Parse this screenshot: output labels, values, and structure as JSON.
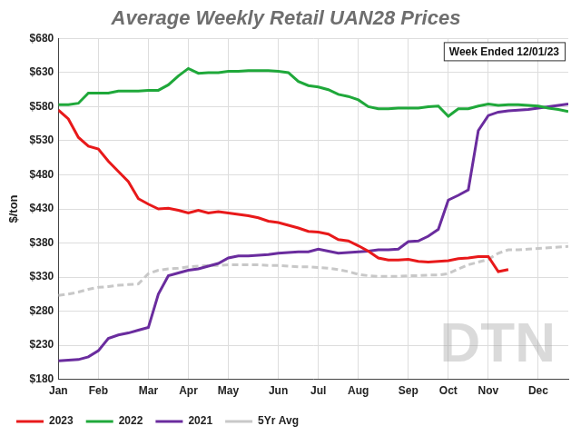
{
  "chart_data": {
    "type": "line",
    "title": "Average Weekly Retail UAN28 Prices",
    "annotations": [
      "Week Ended 12/01/23",
      "DTN"
    ],
    "ylabel": "$/ton",
    "categories": [
      "Jan",
      null,
      null,
      null,
      "Feb",
      null,
      null,
      null,
      null,
      "Mar",
      null,
      null,
      null,
      "Apr",
      null,
      null,
      null,
      "May",
      null,
      null,
      null,
      null,
      "Jun",
      null,
      null,
      null,
      "Jul",
      null,
      null,
      null,
      "Aug",
      null,
      null,
      null,
      null,
      "Sep",
      null,
      null,
      null,
      "Oct",
      null,
      null,
      null,
      "Nov",
      null,
      null,
      null,
      null,
      "Dec",
      null,
      null,
      null
    ],
    "series": [
      {
        "name": "2023",
        "color": "#e8191a",
        "line_style": "solid",
        "values": [
          575,
          562,
          535,
          522,
          518,
          500,
          485,
          470,
          445,
          437,
          430,
          431,
          428,
          424,
          428,
          424,
          426,
          424,
          422,
          420,
          417,
          412,
          410,
          406,
          402,
          397,
          396,
          393,
          385,
          383,
          376,
          368,
          358,
          355,
          355,
          356,
          353,
          352,
          353,
          354,
          357,
          358,
          360,
          360,
          338,
          341,
          null,
          null,
          null,
          null,
          null,
          null
        ]
      },
      {
        "name": "2022",
        "color": "#1fa83a",
        "line_style": "solid",
        "values": [
          583,
          583,
          585,
          600,
          600,
          600,
          603,
          603,
          603,
          604,
          604,
          612,
          625,
          636,
          629,
          630,
          630,
          632,
          632,
          633,
          633,
          633,
          632,
          630,
          617,
          611,
          609,
          605,
          598,
          595,
          590,
          580,
          577,
          577,
          578,
          578,
          578,
          580,
          581,
          566,
          577,
          577,
          581,
          584,
          582,
          583,
          583,
          582,
          581,
          578,
          576,
          573
        ]
      },
      {
        "name": "2021",
        "color": "#6a2c9e",
        "line_style": "solid",
        "values": [
          207,
          208,
          209,
          213,
          222,
          240,
          245,
          248,
          252,
          256,
          305,
          332,
          336,
          340,
          342,
          346,
          350,
          358,
          361,
          361,
          362,
          363,
          365,
          366,
          367,
          367,
          371,
          368,
          365,
          366,
          367,
          368,
          370,
          370,
          371,
          382,
          383,
          390,
          400,
          443,
          450,
          458,
          545,
          567,
          572,
          574,
          575,
          576,
          578,
          580,
          582,
          584
        ]
      },
      {
        "name": "5Yr Avg",
        "color": "#c8c8c8",
        "line_style": "dashed",
        "values": [
          303,
          305,
          308,
          312,
          315,
          316,
          318,
          319,
          320,
          335,
          340,
          342,
          343,
          345,
          346,
          347,
          347,
          348,
          348,
          348,
          348,
          347,
          347,
          346,
          345,
          345,
          344,
          343,
          341,
          338,
          334,
          332,
          331,
          331,
          331,
          332,
          332,
          333,
          333,
          335,
          342,
          348,
          352,
          356,
          365,
          370,
          370,
          371,
          372,
          373,
          374,
          375
        ]
      }
    ],
    "ylim": [
      180,
      680
    ],
    "yticks": [
      {
        "value": 180,
        "label": "$180"
      },
      {
        "value": 230,
        "label": "$230"
      },
      {
        "value": 280,
        "label": "$280"
      },
      {
        "value": 330,
        "label": "$330"
      },
      {
        "value": 380,
        "label": "$380"
      },
      {
        "value": 430,
        "label": "$430"
      },
      {
        "value": 480,
        "label": "$480"
      },
      {
        "value": 530,
        "label": "$530"
      },
      {
        "value": 580,
        "label": "$580"
      },
      {
        "value": 630,
        "label": "$630"
      },
      {
        "value": 680,
        "label": "$680"
      }
    ],
    "grid": true,
    "legend": "bottom"
  }
}
